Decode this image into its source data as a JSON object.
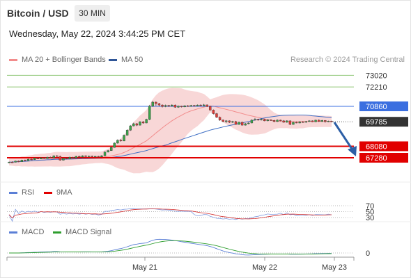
{
  "header": {
    "title": "Bitcoin / USD",
    "timeframe": "30 MIN",
    "datetime": "Wednesday, May 22, 2024 3:44:25 PM CET"
  },
  "legend": {
    "ma20": "MA 20 + Bollinger Bands",
    "ma50": "MA 50",
    "rsi": "RSI",
    "rsi_ma": "9MA",
    "macd": "MACD",
    "macd_signal": "MACD Signal"
  },
  "credit": "Research © 2024 Trading Central",
  "colors": {
    "bull": "#3aa64a",
    "bear": "#e53935",
    "ma20": "#f28c8c",
    "bollinger": "#f6c9c9",
    "ma50": "#3d6ec4",
    "resistance": "#3b6fe0",
    "support": "#e10000",
    "target": "#90c878",
    "current": "#333333",
    "arrow": "#2d5fa6"
  },
  "chart_data": {
    "type": "candlestick",
    "x_labels": [
      "May 21",
      "May 22",
      "May 23"
    ],
    "price_levels": [
      {
        "value": "73020",
        "kind": "target"
      },
      {
        "value": "72210",
        "kind": "target"
      },
      {
        "value": "70860",
        "kind": "resistance"
      },
      {
        "value": "69785",
        "kind": "current"
      },
      {
        "value": "68080",
        "kind": "support"
      },
      {
        "value": "67280",
        "kind": "support"
      }
    ],
    "price_range": [
      66500,
      73500
    ],
    "candles": [
      [
        66950,
        66980,
        66900,
        67010
      ],
      [
        66980,
        66970,
        66920,
        67030
      ],
      [
        66970,
        67050,
        66950,
        67080
      ],
      [
        67050,
        67000,
        66970,
        67090
      ],
      [
        67000,
        67120,
        66990,
        67150
      ],
      [
        67120,
        67080,
        67050,
        67160
      ],
      [
        67080,
        67180,
        67060,
        67210
      ],
      [
        67180,
        67150,
        67120,
        67220
      ],
      [
        67150,
        67260,
        67130,
        67290
      ],
      [
        67260,
        67200,
        67180,
        67290
      ],
      [
        67200,
        67280,
        67180,
        67310
      ],
      [
        67280,
        67220,
        67200,
        67310
      ],
      [
        67220,
        67320,
        67200,
        67350
      ],
      [
        67320,
        67280,
        67250,
        67360
      ],
      [
        67280,
        67420,
        67260,
        67450
      ],
      [
        67420,
        67380,
        67350,
        67460
      ],
      [
        67380,
        67110,
        67080,
        67420
      ],
      [
        67110,
        67250,
        67090,
        67280
      ],
      [
        67250,
        67200,
        67170,
        67290
      ],
      [
        67200,
        67320,
        67180,
        67360
      ],
      [
        67320,
        67280,
        67260,
        67350
      ],
      [
        67280,
        67380,
        67260,
        67410
      ],
      [
        67380,
        67330,
        67310,
        67420
      ],
      [
        67330,
        67420,
        67310,
        67450
      ],
      [
        67420,
        67360,
        67340,
        67450
      ],
      [
        67360,
        67400,
        67340,
        67430
      ],
      [
        67400,
        67350,
        67320,
        67430
      ],
      [
        67350,
        67380,
        67330,
        67410
      ],
      [
        67380,
        67340,
        67310,
        67410
      ],
      [
        67340,
        67420,
        67320,
        67460
      ],
      [
        67420,
        67680,
        67400,
        67720
      ],
      [
        67680,
        67780,
        67640,
        67830
      ],
      [
        67780,
        68000,
        67760,
        68050
      ],
      [
        68000,
        68300,
        67980,
        68350
      ],
      [
        68300,
        68500,
        68260,
        68560
      ],
      [
        68500,
        68450,
        68400,
        68580
      ],
      [
        68450,
        68850,
        68430,
        68900
      ],
      [
        68850,
        69200,
        68820,
        69260
      ],
      [
        69200,
        69500,
        69150,
        69560
      ],
      [
        69500,
        69650,
        69460,
        69720
      ],
      [
        69650,
        69550,
        69480,
        69700
      ],
      [
        69550,
        69780,
        69520,
        69830
      ],
      [
        69780,
        69700,
        69650,
        69840
      ],
      [
        69700,
        69950,
        69680,
        70000
      ],
      [
        69950,
        70870,
        69900,
        70950
      ],
      [
        70870,
        71150,
        70820,
        71250
      ],
      [
        71150,
        71050,
        70900,
        71200
      ],
      [
        71050,
        70950,
        70850,
        71100
      ],
      [
        70950,
        70850,
        70780,
        71000
      ],
      [
        70850,
        70920,
        70800,
        70980
      ],
      [
        70920,
        70880,
        70820,
        70960
      ],
      [
        70880,
        70950,
        70840,
        71000
      ],
      [
        70950,
        70800,
        70760,
        70990
      ],
      [
        70800,
        70870,
        70760,
        70920
      ],
      [
        70870,
        70820,
        70780,
        70900
      ],
      [
        70820,
        70900,
        70800,
        70940
      ],
      [
        70900,
        70860,
        70830,
        70950
      ],
      [
        70860,
        70920,
        70840,
        70960
      ],
      [
        70920,
        70880,
        70850,
        70960
      ],
      [
        70880,
        70950,
        70860,
        70990
      ],
      [
        70950,
        70900,
        70870,
        71000
      ],
      [
        70900,
        70960,
        70880,
        71030
      ],
      [
        70960,
        70850,
        70810,
        70990
      ],
      [
        70850,
        70600,
        70560,
        70880
      ],
      [
        70600,
        70350,
        70300,
        70640
      ],
      [
        70350,
        70100,
        70050,
        70400
      ],
      [
        70100,
        69900,
        69850,
        70150
      ],
      [
        69900,
        69800,
        69750,
        69950
      ],
      [
        69800,
        69850,
        69700,
        69900
      ],
      [
        69850,
        69750,
        69700,
        69880
      ],
      [
        69750,
        69800,
        69700,
        69850
      ],
      [
        69800,
        69600,
        69580,
        69850
      ],
      [
        69600,
        69750,
        69580,
        69800
      ],
      [
        69750,
        69550,
        69520,
        69800
      ],
      [
        69550,
        69650,
        69520,
        69700
      ],
      [
        69650,
        69700,
        69600,
        69750
      ],
      [
        69700,
        69900,
        69680,
        69950
      ],
      [
        69900,
        69950,
        69860,
        70050
      ],
      [
        69950,
        69900,
        69860,
        70000
      ],
      [
        69900,
        69950,
        69880,
        70020
      ],
      [
        69950,
        69850,
        69820,
        69990
      ],
      [
        69850,
        69920,
        69820,
        69960
      ],
      [
        69920,
        69880,
        69850,
        69950
      ],
      [
        69880,
        69800,
        69760,
        69920
      ],
      [
        69800,
        69900,
        69770,
        69950
      ],
      [
        69900,
        69850,
        69820,
        69930
      ],
      [
        69850,
        69750,
        69720,
        69900
      ],
      [
        69750,
        69850,
        69720,
        69890
      ],
      [
        69850,
        69600,
        69560,
        69880
      ],
      [
        69600,
        69750,
        69580,
        69800
      ],
      [
        69750,
        69700,
        69680,
        69800
      ],
      [
        69700,
        69780,
        69680,
        69820
      ],
      [
        69780,
        69750,
        69720,
        69830
      ],
      [
        69750,
        69800,
        69720,
        69840
      ],
      [
        69800,
        69850,
        69780,
        69900
      ],
      [
        69850,
        69780,
        69760,
        69880
      ],
      [
        69780,
        69900,
        69760,
        69930
      ],
      [
        69900,
        69800,
        69780,
        69940
      ],
      [
        69800,
        69880,
        69780,
        69920
      ],
      [
        69880,
        69800,
        69720,
        69900
      ],
      [
        69800,
        69830,
        69760,
        69860
      ],
      [
        69830,
        69785,
        69750,
        69860
      ]
    ],
    "rsi_ticks": [
      "70",
      "50",
      "30"
    ],
    "macd_ticks": [
      "0"
    ]
  }
}
